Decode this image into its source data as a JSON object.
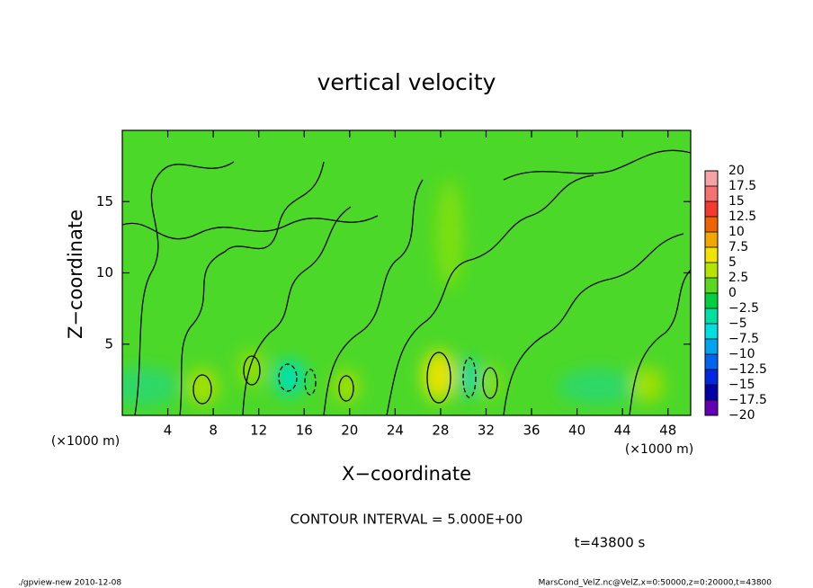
{
  "chart_data": {
    "type": "contour",
    "title": "vertical velocity",
    "x_label": "X−coordinate",
    "y_label": "Z−coordinate",
    "axis_unit": "(×1000 m)",
    "xlim": [
      0,
      50
    ],
    "xticks": [
      4,
      8,
      12,
      16,
      20,
      24,
      28,
      32,
      36,
      40,
      44,
      48
    ],
    "ylim": [
      0,
      20
    ],
    "yticks": [
      5,
      10,
      15
    ],
    "levels": [
      20,
      17.5,
      15,
      12.5,
      10,
      7.5,
      5,
      2.5,
      0,
      {
        "value": -2.5,
        "label": "−2.5"
      },
      {
        "value": -5,
        "label": "−5"
      },
      {
        "value": -7.5,
        "label": "−7.5"
      },
      {
        "value": -10,
        "label": "−10"
      },
      {
        "value": -12.5,
        "label": "−12.5"
      },
      {
        "value": -15,
        "label": "−15"
      },
      {
        "value": -17.5,
        "label": "−17.5"
      },
      {
        "value": -20,
        "label": "−20"
      }
    ],
    "colors": [
      "#f4a4a4",
      "#f47272",
      "#f43a30",
      "#f06400",
      "#f0a800",
      "#f0e400",
      "#b4e400",
      "#5ad820",
      "#00d040",
      "#00e0a0",
      "#00e0e0",
      "#00a4f0",
      "#0064f0",
      "#0028e0",
      "#0000a8",
      "#6400b4"
    ],
    "contour_interval": "CONTOUR INTERVAL = 5.000E+00",
    "time_label": "t=43800 s",
    "footer_left": "./gpview-new  2010-12-08",
    "footer_right": "MarsCond_VelZ.nc@VelZ,x=0:50000,z=0:20000,t=43800"
  }
}
